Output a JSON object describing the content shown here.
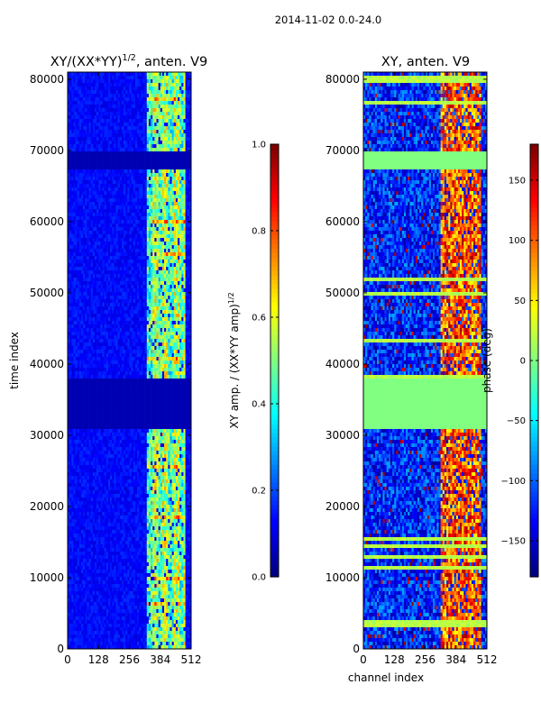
{
  "figure": {
    "suptitle": "2014-11-02 0.0-24.0"
  },
  "chart_data": [
    {
      "type": "heatmap",
      "title_main": "XY/(XX*YY)",
      "title_exp": "1/2",
      "title_rest": ", anten. V9",
      "xlabel": "",
      "ylabel": "time index",
      "x_ticks": [
        0,
        128,
        256,
        384,
        512
      ],
      "y_ticks": [
        0,
        10000,
        20000,
        30000,
        40000,
        50000,
        60000,
        70000,
        80000
      ],
      "xlim": [
        0,
        512
      ],
      "ylim": [
        0,
        81000
      ],
      "colormap": "jet",
      "colorbar": {
        "label_main": "XY amp. / (XX*YY amp)",
        "label_exp": "1/2",
        "range": [
          0.0,
          1.0
        ],
        "ticks": [
          "0.0",
          "0.2",
          "0.4",
          "0.6",
          "0.8",
          "1.0"
        ]
      },
      "regions": [
        {
          "description": "mostly low amplitude",
          "channels": [
            0,
            330
          ],
          "value_approx": 0.1
        },
        {
          "description": "high-amplitude band",
          "channels": [
            330,
            490
          ],
          "value_approx": 0.45
        },
        {
          "description": "flagged block (zero)",
          "time": [
            31000,
            38000
          ],
          "value_approx": 0.0
        },
        {
          "description": "flagged block (zero)",
          "time": [
            67500,
            70000
          ],
          "value_approx": 0.0
        }
      ]
    },
    {
      "type": "heatmap",
      "title": "XY, anten. V9",
      "xlabel": "channel index",
      "ylabel": "",
      "x_ticks": [
        0,
        128,
        256,
        384,
        512
      ],
      "y_ticks": [
        0,
        10000,
        20000,
        30000,
        40000,
        50000,
        60000,
        70000,
        80000
      ],
      "xlim": [
        0,
        512
      ],
      "ylim": [
        0,
        81000
      ],
      "colormap": "jet",
      "colorbar": {
        "label": "phase (deg)",
        "range": [
          -180,
          180
        ],
        "ticks": [
          "−150",
          "−100",
          "−50",
          "0",
          "50",
          "100",
          "150"
        ]
      },
      "regions": [
        {
          "description": "mostly negative phase",
          "channels": [
            0,
            320
          ],
          "value_approx": -120
        },
        {
          "description": "positive phase band",
          "channels": [
            320,
            490
          ],
          "value_approx": 90
        },
        {
          "description": "flagged block (constant)",
          "time": [
            31000,
            38000
          ],
          "value_approx": 0
        },
        {
          "description": "flagged block (constant)",
          "time": [
            67500,
            70000
          ],
          "value_approx": 0
        }
      ]
    }
  ]
}
